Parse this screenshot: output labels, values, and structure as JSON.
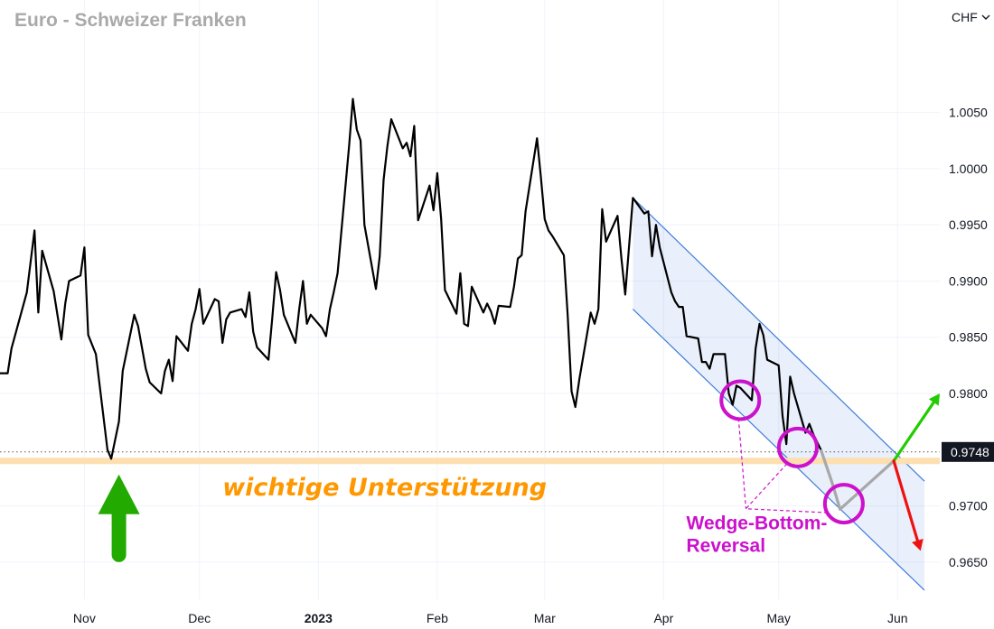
{
  "chart_data": {
    "type": "line",
    "title": "Euro - Schweizer Franken",
    "currency_label": "CHF",
    "currency_dropdown_icon": "chevron-down-icon",
    "x_ticks": [
      {
        "label": "Nov",
        "date": "2022-11-01",
        "bold": false
      },
      {
        "label": "Dec",
        "date": "2022-12-01",
        "bold": false
      },
      {
        "label": "2023",
        "date": "2023-01-01",
        "bold": true
      },
      {
        "label": "Feb",
        "date": "2023-02-01",
        "bold": false
      },
      {
        "label": "Mar",
        "date": "2023-03-01",
        "bold": false
      },
      {
        "label": "Apr",
        "date": "2023-04-01",
        "bold": false
      },
      {
        "label": "May",
        "date": "2023-05-01",
        "bold": false
      },
      {
        "label": "Jun",
        "date": "2023-06-01",
        "bold": false
      }
    ],
    "y_ticks": [
      1.005,
      1.0,
      0.995,
      0.99,
      0.985,
      0.98,
      0.97,
      0.965
    ],
    "y_tick_labels": [
      "1.0050",
      "1.0000",
      "0.9950",
      "0.9900",
      "0.9850",
      "0.9800",
      "0.9700",
      "0.9650"
    ],
    "xlim": [
      "2022-10-10",
      "2023-06-12"
    ],
    "ylim": [
      0.9617,
      1.015
    ],
    "grid": true,
    "current_price": {
      "value": 0.9748,
      "label": "0.9748",
      "color": "#131722"
    },
    "series": [
      {
        "color": "#000000",
        "points": [
          [
            "2022-10-10",
            0.9818
          ],
          [
            "2022-10-12",
            0.9818
          ],
          [
            "2022-10-13",
            0.984
          ],
          [
            "2022-10-17",
            0.989
          ],
          [
            "2022-10-19",
            0.9945
          ],
          [
            "2022-10-20",
            0.9872
          ],
          [
            "2022-10-21",
            0.9927
          ],
          [
            "2022-10-24",
            0.9891
          ],
          [
            "2022-10-26",
            0.9848
          ],
          [
            "2022-10-27",
            0.988
          ],
          [
            "2022-10-28",
            0.99
          ],
          [
            "2022-10-31",
            0.9905
          ],
          [
            "2022-11-01",
            0.993
          ],
          [
            "2022-11-02",
            0.9852
          ],
          [
            "2022-11-04",
            0.9835
          ],
          [
            "2022-11-07",
            0.975
          ],
          [
            "2022-11-08",
            0.9742
          ],
          [
            "2022-11-10",
            0.9775
          ],
          [
            "2022-11-11",
            0.982
          ],
          [
            "2022-11-14",
            0.987
          ],
          [
            "2022-11-15",
            0.986
          ],
          [
            "2022-11-17",
            0.9822
          ],
          [
            "2022-11-18",
            0.981
          ],
          [
            "2022-11-21",
            0.98
          ],
          [
            "2022-11-22",
            0.982
          ],
          [
            "2022-11-23",
            0.983
          ],
          [
            "2022-11-24",
            0.9811
          ],
          [
            "2022-11-25",
            0.9851
          ],
          [
            "2022-11-28",
            0.9838
          ],
          [
            "2022-11-29",
            0.9862
          ],
          [
            "2022-11-30",
            0.9875
          ],
          [
            "2022-12-01",
            0.9893
          ],
          [
            "2022-12-02",
            0.9862
          ],
          [
            "2022-12-05",
            0.9884
          ],
          [
            "2022-12-06",
            0.9882
          ],
          [
            "2022-12-07",
            0.9845
          ],
          [
            "2022-12-08",
            0.9866
          ],
          [
            "2022-12-09",
            0.9872
          ],
          [
            "2022-12-12",
            0.9875
          ],
          [
            "2022-12-13",
            0.9868
          ],
          [
            "2022-12-14",
            0.989
          ],
          [
            "2022-12-15",
            0.9855
          ],
          [
            "2022-12-16",
            0.9841
          ],
          [
            "2022-12-19",
            0.983
          ],
          [
            "2022-12-20",
            0.9868
          ],
          [
            "2022-12-21",
            0.9908
          ],
          [
            "2022-12-22",
            0.9892
          ],
          [
            "2022-12-23",
            0.987
          ],
          [
            "2022-12-26",
            0.9845
          ],
          [
            "2022-12-27",
            0.9875
          ],
          [
            "2022-12-28",
            0.99
          ],
          [
            "2022-12-29",
            0.9862
          ],
          [
            "2022-12-30",
            0.987
          ],
          [
            "2023-01-02",
            0.9858
          ],
          [
            "2023-01-03",
            0.9851
          ],
          [
            "2023-01-04",
            0.9875
          ],
          [
            "2023-01-05",
            0.989
          ],
          [
            "2023-01-06",
            0.9907
          ],
          [
            "2023-01-09",
            1.002
          ],
          [
            "2023-01-10",
            1.0062
          ],
          [
            "2023-01-11",
            1.0035
          ],
          [
            "2023-01-12",
            1.0025
          ],
          [
            "2023-01-13",
            0.995
          ],
          [
            "2023-01-16",
            0.9893
          ],
          [
            "2023-01-17",
            0.9922
          ],
          [
            "2023-01-18",
            0.999
          ],
          [
            "2023-01-19",
            1.002
          ],
          [
            "2023-01-20",
            1.0044
          ],
          [
            "2023-01-23",
            1.0018
          ],
          [
            "2023-01-24",
            1.0023
          ],
          [
            "2023-01-25",
            1.0011
          ],
          [
            "2023-01-26",
            1.0038
          ],
          [
            "2023-01-27",
            0.9954
          ],
          [
            "2023-01-30",
            0.9985
          ],
          [
            "2023-01-31",
            0.9963
          ],
          [
            "2023-02-01",
            0.9996
          ],
          [
            "2023-02-02",
            0.9955
          ],
          [
            "2023-02-03",
            0.9892
          ],
          [
            "2023-02-06",
            0.9871
          ],
          [
            "2023-02-07",
            0.9907
          ],
          [
            "2023-02-08",
            0.9862
          ],
          [
            "2023-02-09",
            0.986
          ],
          [
            "2023-02-10",
            0.9895
          ],
          [
            "2023-02-13",
            0.9872
          ],
          [
            "2023-02-14",
            0.988
          ],
          [
            "2023-02-15",
            0.9873
          ],
          [
            "2023-02-16",
            0.9862
          ],
          [
            "2023-02-17",
            0.9878
          ],
          [
            "2023-02-20",
            0.9877
          ],
          [
            "2023-02-21",
            0.9895
          ],
          [
            "2023-02-22",
            0.992
          ],
          [
            "2023-02-23",
            0.9923
          ],
          [
            "2023-02-24",
            0.9962
          ],
          [
            "2023-02-27",
            1.0027
          ],
          [
            "2023-02-28",
            0.9993
          ],
          [
            "2023-03-01",
            0.9955
          ],
          [
            "2023-03-02",
            0.9945
          ],
          [
            "2023-03-03",
            0.994
          ],
          [
            "2023-03-06",
            0.9923
          ],
          [
            "2023-03-07",
            0.987
          ],
          [
            "2023-03-08",
            0.9802
          ],
          [
            "2023-03-09",
            0.9788
          ],
          [
            "2023-03-10",
            0.9812
          ],
          [
            "2023-03-13",
            0.9872
          ],
          [
            "2023-03-14",
            0.9862
          ],
          [
            "2023-03-15",
            0.9875
          ],
          [
            "2023-03-16",
            0.9964
          ],
          [
            "2023-03-17",
            0.9935
          ],
          [
            "2023-03-20",
            0.9958
          ],
          [
            "2023-03-21",
            0.992
          ],
          [
            "2023-03-22",
            0.9888
          ],
          [
            "2023-03-24",
            0.9974
          ],
          [
            "2023-03-27",
            0.996
          ],
          [
            "2023-03-28",
            0.9962
          ],
          [
            "2023-03-29",
            0.9922
          ],
          [
            "2023-03-30",
            0.995
          ],
          [
            "2023-03-31",
            0.993
          ],
          [
            "2023-04-03",
            0.989
          ],
          [
            "2023-04-04",
            0.9882
          ],
          [
            "2023-04-05",
            0.9877
          ],
          [
            "2023-04-06",
            0.9877
          ],
          [
            "2023-04-07",
            0.9851
          ],
          [
            "2023-04-10",
            0.9849
          ],
          [
            "2023-04-11",
            0.9828
          ],
          [
            "2023-04-12",
            0.9828
          ],
          [
            "2023-04-13",
            0.9822
          ],
          [
            "2023-04-14",
            0.9835
          ],
          [
            "2023-04-17",
            0.9835
          ],
          [
            "2023-04-18",
            0.98
          ],
          [
            "2023-04-19",
            0.979
          ],
          [
            "2023-04-20",
            0.9807
          ],
          [
            "2023-04-21",
            0.9805
          ],
          [
            "2023-04-24",
            0.9794
          ],
          [
            "2023-04-25",
            0.984
          ],
          [
            "2023-04-26",
            0.9862
          ],
          [
            "2023-04-27",
            0.9852
          ],
          [
            "2023-04-28",
            0.983
          ],
          [
            "2023-05-01",
            0.9825
          ],
          [
            "2023-05-02",
            0.978
          ],
          [
            "2023-05-03",
            0.9755
          ],
          [
            "2023-05-04",
            0.9815
          ],
          [
            "2023-05-05",
            0.98
          ],
          [
            "2023-05-08",
            0.9765
          ],
          [
            "2023-05-09",
            0.9773
          ],
          [
            "2023-05-10",
            0.9764
          ],
          [
            "2023-05-12",
            0.975
          ]
        ]
      }
    ],
    "annotations": {
      "support_line": {
        "value": 0.974,
        "text": "wichtige Unterstützung",
        "line_color": "#fddfb0",
        "text_color": "#ff9800"
      },
      "current_price_line": {
        "value": 0.9748,
        "color": "#555555"
      },
      "channel": {
        "upper": [
          [
            "2023-03-24",
            0.9974
          ],
          [
            "2023-06-08",
            0.9722
          ]
        ],
        "lower": [
          [
            "2023-03-24",
            0.9875
          ],
          [
            "2023-06-08",
            0.9625
          ]
        ],
        "line_color": "#3d7bdb",
        "fill_color": "rgba(100, 140, 230, 0.14)"
      },
      "projection_path": {
        "points": [
          [
            "2023-05-12",
            0.975
          ],
          [
            "2023-05-15",
            0.972
          ],
          [
            "2023-05-17",
            0.9697
          ],
          [
            "2023-05-31",
            0.974
          ]
        ],
        "color": "#a8a8a8"
      },
      "arrow_up_right": {
        "from": [
          "2023-05-31",
          0.974
        ],
        "to": [
          "2023-06-12",
          0.98
        ],
        "color": "#22cc00"
      },
      "arrow_down": {
        "from": [
          "2023-05-31",
          0.974
        ],
        "to": [
          "2023-06-07",
          0.966
        ],
        "color": "#ee1111"
      },
      "big_up_arrow": {
        "from": [
          "2022-11-10",
          0.965
        ],
        "to": [
          "2022-11-10",
          0.9736
        ],
        "color": "#22aa00"
      },
      "circles": [
        {
          "center": [
            "2023-04-21",
            0.9794
          ],
          "color": "#cc11cc"
        },
        {
          "center": [
            "2023-05-06",
            0.9752
          ],
          "color": "#cc11cc"
        },
        {
          "center": [
            "2023-05-18",
            0.9702
          ],
          "color": "#cc11cc"
        }
      ],
      "pattern_label": {
        "lines": [
          "Wedge-Bottom-",
          "Reversal"
        ],
        "color": "#cc11cc",
        "anchor": [
          "2023-04-22",
          0.9675
        ]
      }
    }
  }
}
